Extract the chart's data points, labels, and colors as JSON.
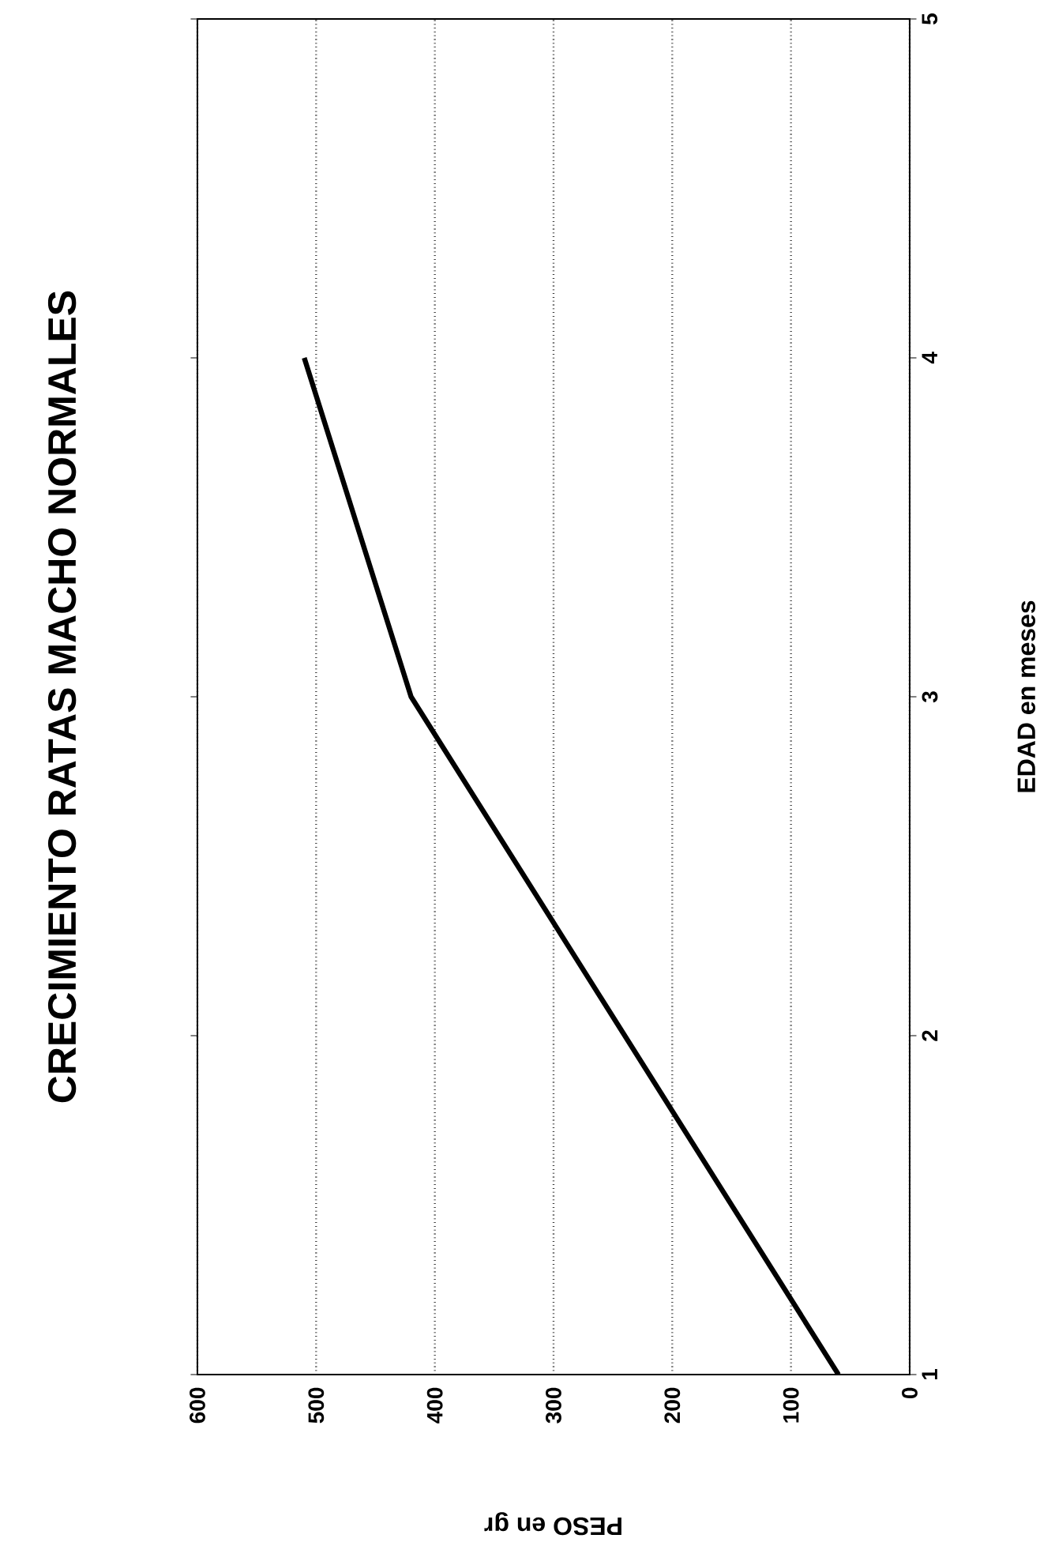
{
  "chart_data": {
    "type": "line",
    "title": "CRECIMIENTO RATAS MACHO NORMALES",
    "xlabel": "PESO en gr",
    "ylabel": "EDAD en meses",
    "x": [
      60,
      420,
      510
    ],
    "values": [
      1,
      3,
      4
    ],
    "color": "#000000",
    "xlim": [
      600,
      0
    ],
    "xticks": [
      0,
      100,
      200,
      300,
      400,
      500,
      600
    ],
    "ylim": [
      1,
      5
    ],
    "yticks": [
      1,
      2,
      3,
      4,
      5
    ],
    "grid": "x"
  }
}
